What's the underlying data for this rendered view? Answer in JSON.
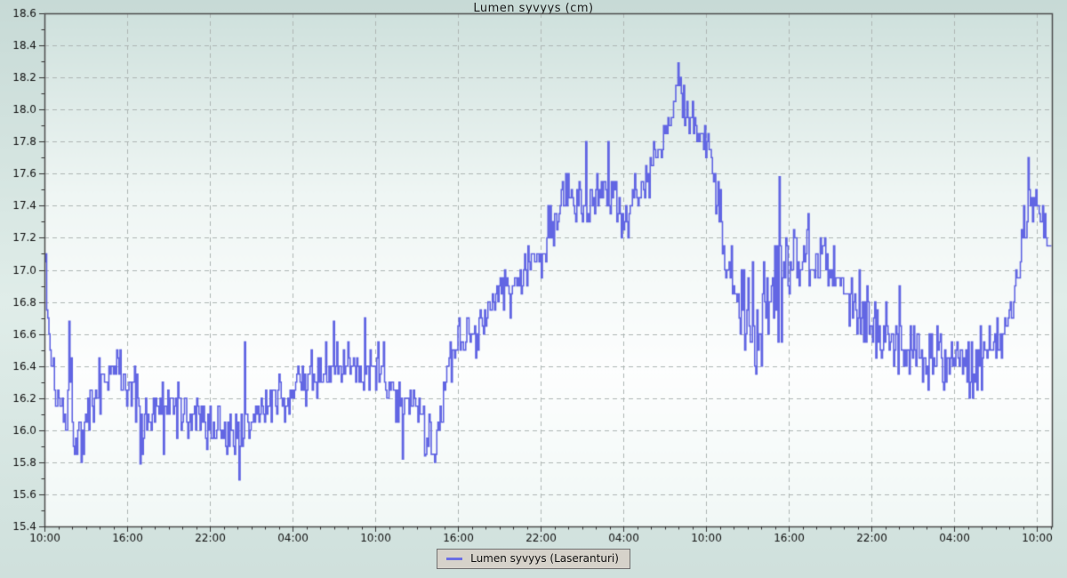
{
  "chart_data": {
    "type": "line",
    "title": "Lumen syvyys (cm)",
    "xlabel": "",
    "ylabel": "",
    "ylim": [
      15.4,
      18.6
    ],
    "y_major_step": 0.2,
    "y_minor_step": 0.1,
    "x_hours_span": 73.1,
    "x_major_step_hours": 6,
    "x_minor_step_hours": 1,
    "x_tick_labels": [
      "10:00",
      "16:00",
      "22:00",
      "04:00",
      "10:00",
      "16:00",
      "22:00",
      "04:00",
      "10:00",
      "16:00",
      "22:00",
      "04:00",
      "10:00"
    ],
    "grid": "dashed major gridlines on",
    "legend_position": "bottom-center",
    "series": [
      {
        "name": "Lumen syvyys (Laseranturi)",
        "color": "#6266e3",
        "quantization_cm": 0.05,
        "noise_seed": 1337,
        "trend_keypoints": [
          [
            0.0,
            17.08,
            0.02
          ],
          [
            0.15,
            16.8,
            0.06
          ],
          [
            0.45,
            16.45,
            0.1
          ],
          [
            0.9,
            16.22,
            0.13
          ],
          [
            1.6,
            16.15,
            0.13
          ],
          [
            1.78,
            16.4,
            0.14
          ],
          [
            2.1,
            16.05,
            0.13
          ],
          [
            2.8,
            15.98,
            0.13
          ],
          [
            3.3,
            16.1,
            0.12
          ],
          [
            3.9,
            16.28,
            0.1
          ],
          [
            4.6,
            16.36,
            0.1
          ],
          [
            5.2,
            16.42,
            0.1
          ],
          [
            5.9,
            16.3,
            0.1
          ],
          [
            6.5,
            16.28,
            0.12
          ],
          [
            6.9,
            16.05,
            0.18
          ],
          [
            7.4,
            16.1,
            0.12
          ],
          [
            8.2,
            16.15,
            0.1
          ],
          [
            9.5,
            16.12,
            0.1
          ],
          [
            11.0,
            16.1,
            0.1
          ],
          [
            12.5,
            16.02,
            0.1
          ],
          [
            13.8,
            15.98,
            0.1
          ],
          [
            14.6,
            16.05,
            0.12
          ],
          [
            15.5,
            16.1,
            0.1
          ],
          [
            16.5,
            16.15,
            0.1
          ],
          [
            17.5,
            16.22,
            0.1
          ],
          [
            18.5,
            16.3,
            0.1
          ],
          [
            19.5,
            16.34,
            0.1
          ],
          [
            20.5,
            16.37,
            0.11
          ],
          [
            21.5,
            16.38,
            0.11
          ],
          [
            22.5,
            16.4,
            0.12
          ],
          [
            23.5,
            16.39,
            0.11
          ],
          [
            24.5,
            16.36,
            0.1
          ],
          [
            25.5,
            16.25,
            0.1
          ],
          [
            26.3,
            16.12,
            0.1
          ],
          [
            27.3,
            16.08,
            0.11
          ],
          [
            28.2,
            15.95,
            0.12
          ],
          [
            28.7,
            16.05,
            0.1
          ],
          [
            29.2,
            16.35,
            0.1
          ],
          [
            30.0,
            16.5,
            0.1
          ],
          [
            31.0,
            16.6,
            0.11
          ],
          [
            32.0,
            16.72,
            0.11
          ],
          [
            33.0,
            16.85,
            0.11
          ],
          [
            34.0,
            16.9,
            0.11
          ],
          [
            35.0,
            16.98,
            0.11
          ],
          [
            36.0,
            17.1,
            0.11
          ],
          [
            36.8,
            17.3,
            0.11
          ],
          [
            37.6,
            17.42,
            0.11
          ],
          [
            38.5,
            17.47,
            0.11
          ],
          [
            40.0,
            17.5,
            0.11
          ],
          [
            41.3,
            17.48,
            0.11
          ],
          [
            41.9,
            17.3,
            0.09
          ],
          [
            42.6,
            17.4,
            0.09
          ],
          [
            43.5,
            17.55,
            0.1
          ],
          [
            44.5,
            17.75,
            0.1
          ],
          [
            45.3,
            17.95,
            0.1
          ],
          [
            46.0,
            18.05,
            0.11
          ],
          [
            46.8,
            17.98,
            0.09
          ],
          [
            47.5,
            17.85,
            0.08
          ],
          [
            48.2,
            17.72,
            0.07
          ],
          [
            48.8,
            17.45,
            0.1
          ],
          [
            49.4,
            17.05,
            0.12
          ],
          [
            50.2,
            16.85,
            0.2
          ],
          [
            51.2,
            16.72,
            0.22
          ],
          [
            52.2,
            16.78,
            0.22
          ],
          [
            53.2,
            16.85,
            0.22
          ],
          [
            54.0,
            17.05,
            0.16
          ],
          [
            55.0,
            17.15,
            0.14
          ],
          [
            56.0,
            17.12,
            0.14
          ],
          [
            57.0,
            17.05,
            0.14
          ],
          [
            58.0,
            16.92,
            0.13
          ],
          [
            59.0,
            16.8,
            0.13
          ],
          [
            60.0,
            16.68,
            0.13
          ],
          [
            61.5,
            16.58,
            0.13
          ],
          [
            63.0,
            16.5,
            0.13
          ],
          [
            64.5,
            16.46,
            0.13
          ],
          [
            66.0,
            16.42,
            0.13
          ],
          [
            67.0,
            16.38,
            0.14
          ],
          [
            68.0,
            16.44,
            0.12
          ],
          [
            69.0,
            16.52,
            0.11
          ],
          [
            69.7,
            16.6,
            0.1
          ],
          [
            70.3,
            16.85,
            0.09
          ],
          [
            70.8,
            17.1,
            0.09
          ],
          [
            71.3,
            17.42,
            0.1
          ],
          [
            71.8,
            17.45,
            0.08
          ],
          [
            72.3,
            17.35,
            0.08
          ],
          [
            72.8,
            17.2,
            0.06
          ],
          [
            73.1,
            17.18,
            0.05
          ]
        ],
        "spikes": [
          [
            0.05,
            17.1
          ],
          [
            1.78,
            16.68
          ],
          [
            6.95,
            15.79
          ],
          [
            8.6,
            15.85
          ],
          [
            11.8,
            15.88
          ],
          [
            14.15,
            15.69
          ],
          [
            14.5,
            16.55
          ],
          [
            21.0,
            16.68
          ],
          [
            23.2,
            16.7
          ],
          [
            26.0,
            15.82
          ],
          [
            27.6,
            15.84
          ],
          [
            28.3,
            15.8
          ],
          [
            39.3,
            17.8
          ],
          [
            40.9,
            17.8
          ],
          [
            46.0,
            18.29
          ],
          [
            53.3,
            17.58
          ],
          [
            62.0,
            16.9
          ],
          [
            71.35,
            17.7
          ]
        ]
      }
    ]
  },
  "legend": {
    "label": "Lumen syvyys (Laseranturi)"
  },
  "style": {
    "line_color": "#6266e3",
    "grid_color": "#aeb6b4",
    "axis_color": "#4d4d4d",
    "tick_color": "#333333",
    "tick_label_color": "#111111",
    "legend_bg": "#d6d2ca",
    "legend_border": "#707070",
    "plot_gradient": [
      "#cfe1dd",
      "#eff6f4",
      "#fdfefe",
      "#f1f8f6"
    ],
    "page_gradient": [
      "#c7dad6",
      "#e0ede9",
      "#cfe0dc"
    ]
  }
}
